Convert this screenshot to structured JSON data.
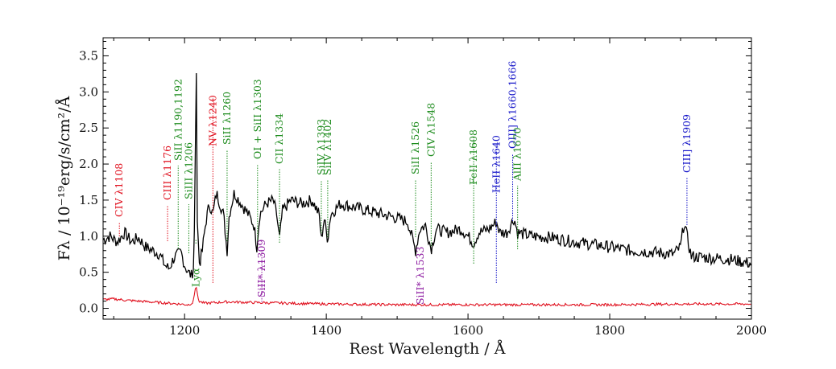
{
  "chart_data": {
    "type": "line",
    "xlabel": "Rest Wavelength / Å",
    "ylabel": "Fλ / 10⁻¹⁹erg/s/cm²/Å",
    "xlim": [
      1085,
      2000
    ],
    "ylim": [
      -0.15,
      3.75
    ],
    "xticks": [
      1200,
      1400,
      1600,
      1800,
      2000
    ],
    "xtick_labels": [
      "1200",
      "1400",
      "1600",
      "1800",
      "2000"
    ],
    "yticks": [
      0.0,
      0.5,
      1.0,
      1.5,
      2.0,
      2.5,
      3.0,
      3.5
    ],
    "ytick_labels": [
      "0.0",
      "0.5",
      "1.0",
      "1.5",
      "2.0",
      "2.5",
      "3.0",
      "3.5"
    ],
    "grid": false,
    "colors": {
      "spectrum": "#000000",
      "error": "#e0101e",
      "emission_red": "#e0101e",
      "ism_green": "#1e8c1e",
      "nebular_blue": "#1414c8",
      "fine_purple": "#8c1aa0"
    },
    "series": [
      {
        "role": "spectrum",
        "color": "#000000",
        "points": [
          [
            1085,
            0.95
          ],
          [
            1095,
            1.0
          ],
          [
            1105,
            0.92
          ],
          [
            1115,
            1.05
          ],
          [
            1125,
            0.92
          ],
          [
            1135,
            0.98
          ],
          [
            1145,
            0.85
          ],
          [
            1155,
            0.8
          ],
          [
            1165,
            0.75
          ],
          [
            1172,
            0.6
          ],
          [
            1178,
            0.55
          ],
          [
            1185,
            0.7
          ],
          [
            1195,
            0.78
          ],
          [
            1200,
            0.6
          ],
          [
            1205,
            0.5
          ],
          [
            1210,
            0.45
          ],
          [
            1213,
            0.6
          ],
          [
            1215,
            1.8
          ],
          [
            1216,
            3.65
          ],
          [
            1217,
            3.0
          ],
          [
            1218,
            1.2
          ],
          [
            1221,
            0.6
          ],
          [
            1225,
            0.8
          ],
          [
            1230,
            1.2
          ],
          [
            1235,
            1.45
          ],
          [
            1240,
            1.3
          ],
          [
            1245,
            1.6
          ],
          [
            1250,
            1.45
          ],
          [
            1255,
            1.3
          ],
          [
            1260,
            0.8
          ],
          [
            1263,
            1.3
          ],
          [
            1270,
            1.6
          ],
          [
            1280,
            1.45
          ],
          [
            1290,
            1.3
          ],
          [
            1298,
            1.15
          ],
          [
            1302,
            0.85
          ],
          [
            1306,
            1.3
          ],
          [
            1315,
            1.45
          ],
          [
            1325,
            1.5
          ],
          [
            1330,
            1.3
          ],
          [
            1334,
            0.95
          ],
          [
            1338,
            1.35
          ],
          [
            1350,
            1.5
          ],
          [
            1365,
            1.45
          ],
          [
            1380,
            1.5
          ],
          [
            1390,
            1.3
          ],
          [
            1393,
            0.95
          ],
          [
            1397,
            1.25
          ],
          [
            1402,
            0.95
          ],
          [
            1406,
            1.3
          ],
          [
            1420,
            1.45
          ],
          [
            1440,
            1.4
          ],
          [
            1460,
            1.35
          ],
          [
            1480,
            1.3
          ],
          [
            1500,
            1.25
          ],
          [
            1515,
            1.2
          ],
          [
            1526,
            0.8
          ],
          [
            1532,
            1.1
          ],
          [
            1540,
            1.15
          ],
          [
            1548,
            0.82
          ],
          [
            1555,
            1.1
          ],
          [
            1570,
            1.05
          ],
          [
            1590,
            1.1
          ],
          [
            1600,
            1.0
          ],
          [
            1608,
            0.9
          ],
          [
            1615,
            1.05
          ],
          [
            1630,
            1.1
          ],
          [
            1640,
            1.2
          ],
          [
            1645,
            1.05
          ],
          [
            1655,
            1.05
          ],
          [
            1665,
            1.25
          ],
          [
            1670,
            1.05
          ],
          [
            1690,
            1.0
          ],
          [
            1720,
            0.98
          ],
          [
            1750,
            0.92
          ],
          [
            1780,
            0.88
          ],
          [
            1800,
            0.85
          ],
          [
            1830,
            0.8
          ],
          [
            1860,
            0.78
          ],
          [
            1890,
            0.75
          ],
          [
            1900,
            0.85
          ],
          [
            1905,
            1.2
          ],
          [
            1909,
            1.0
          ],
          [
            1915,
            0.72
          ],
          [
            1940,
            0.7
          ],
          [
            1970,
            0.68
          ],
          [
            2000,
            0.62
          ]
        ]
      },
      {
        "role": "error",
        "color": "#e0101e",
        "points": [
          [
            1085,
            0.12
          ],
          [
            1100,
            0.13
          ],
          [
            1120,
            0.11
          ],
          [
            1150,
            0.09
          ],
          [
            1180,
            0.07
          ],
          [
            1205,
            0.05
          ],
          [
            1212,
            0.08
          ],
          [
            1216,
            0.32
          ],
          [
            1220,
            0.1
          ],
          [
            1228,
            0.07
          ],
          [
            1260,
            0.09
          ],
          [
            1300,
            0.08
          ],
          [
            1400,
            0.06
          ],
          [
            1500,
            0.05
          ],
          [
            1600,
            0.05
          ],
          [
            1700,
            0.05
          ],
          [
            1800,
            0.05
          ],
          [
            1900,
            0.06
          ],
          [
            2000,
            0.06
          ]
        ]
      }
    ],
    "annotations": [
      {
        "label": "CIV λ1108",
        "x": 1108,
        "color": "emission_red"
      },
      {
        "label": "CIII λ1176",
        "x": 1176,
        "color": "emission_red"
      },
      {
        "label": "SiII λ1190,1192",
        "x": 1191,
        "color": "ism_green"
      },
      {
        "label": "SiIII λ1206",
        "x": 1206,
        "color": "ism_green"
      },
      {
        "label": "Lyα",
        "x": 1216,
        "color": "ism_green"
      },
      {
        "label": "NV λ1240",
        "x": 1240,
        "color": "emission_red"
      },
      {
        "label": "SiII λ1260",
        "x": 1260,
        "color": "ism_green"
      },
      {
        "label": "OI + SiII λ1303",
        "x": 1303,
        "color": "ism_green"
      },
      {
        "label": "SiII* λ1309",
        "x": 1309,
        "color": "fine_purple"
      },
      {
        "label": "CII λ1334",
        "x": 1334,
        "color": "ism_green"
      },
      {
        "label": "SiIV λ1393",
        "x": 1393,
        "color": "ism_green"
      },
      {
        "label": "SiIV λ1402",
        "x": 1402,
        "color": "ism_green"
      },
      {
        "label": "SiII λ1526",
        "x": 1526,
        "color": "ism_green"
      },
      {
        "label": "SiII* λ1533",
        "x": 1533,
        "color": "fine_purple"
      },
      {
        "label": "CIV λ1548",
        "x": 1548,
        "color": "ism_green"
      },
      {
        "label": "FeII λ1608",
        "x": 1608,
        "color": "ism_green"
      },
      {
        "label": "HeII λ1640",
        "x": 1640,
        "color": "nebular_blue"
      },
      {
        "label": "OIII] λ1660,1666",
        "x": 1663,
        "color": "nebular_blue"
      },
      {
        "label": "AlII λ1670",
        "x": 1670,
        "color": "ism_green"
      },
      {
        "label": "CIII] λ1909",
        "x": 1909,
        "color": "nebular_blue"
      }
    ]
  }
}
